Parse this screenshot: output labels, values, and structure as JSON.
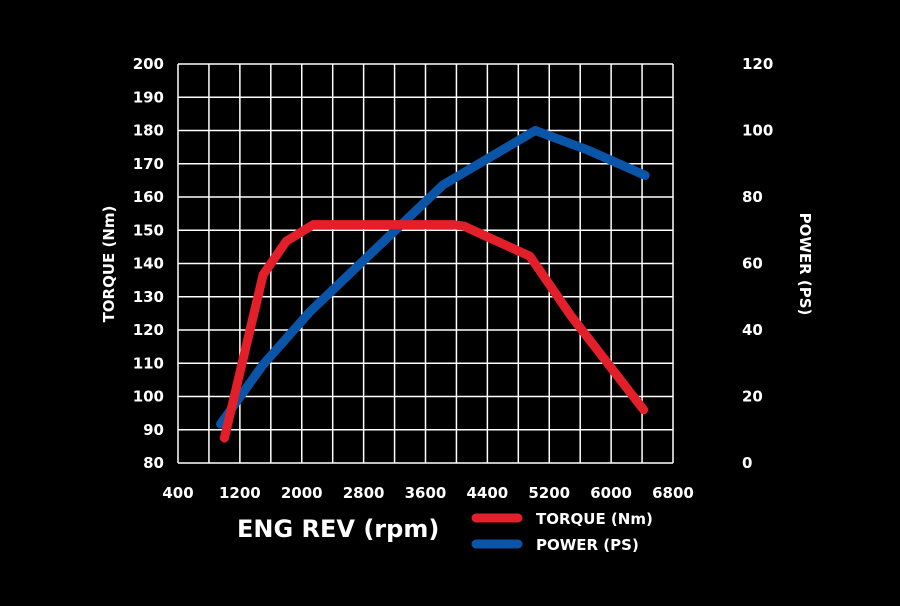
{
  "chart_data": {
    "type": "line",
    "title": "",
    "xlabel": "ENG REV (rpm)",
    "ylabel": "TORQUE (Nm)",
    "y2label": "POWER (PS)",
    "xlim": [
      400,
      6800
    ],
    "ylim": [
      80,
      200
    ],
    "y2lim": [
      0,
      120
    ],
    "x_ticks": [
      "400",
      "1200",
      "2000",
      "2800",
      "3600",
      "4400",
      "5200",
      "6000",
      "6800"
    ],
    "y_ticks": [
      "200",
      "190",
      "180",
      "170",
      "160",
      "150",
      "140",
      "130",
      "120",
      "110",
      "100",
      "90",
      "80"
    ],
    "y2_ticks": [
      "120",
      "100",
      "80",
      "60",
      "40",
      "20",
      "0"
    ],
    "grid": true,
    "legend_position": "bottom",
    "series": [
      {
        "name": "TORQUE (Nm)",
        "axis": "left",
        "color": "#e3202a",
        "x": [
          1000,
          1500,
          1800,
          2150,
          3950,
          4100,
          4950,
          5470,
          6420
        ],
        "y": [
          87.5,
          136.6,
          146.7,
          151.7,
          151.7,
          151.2,
          142.2,
          124.6,
          96
        ]
      },
      {
        "name": "POWER (PS)",
        "axis": "right",
        "color": "#0b55a8",
        "x": [
          950,
          1500,
          2110,
          2880,
          3830,
          5020,
          5690,
          6440
        ],
        "y": [
          11.7,
          29.6,
          45.6,
          62.7,
          83.7,
          100,
          94.2,
          86.5
        ]
      }
    ]
  }
}
